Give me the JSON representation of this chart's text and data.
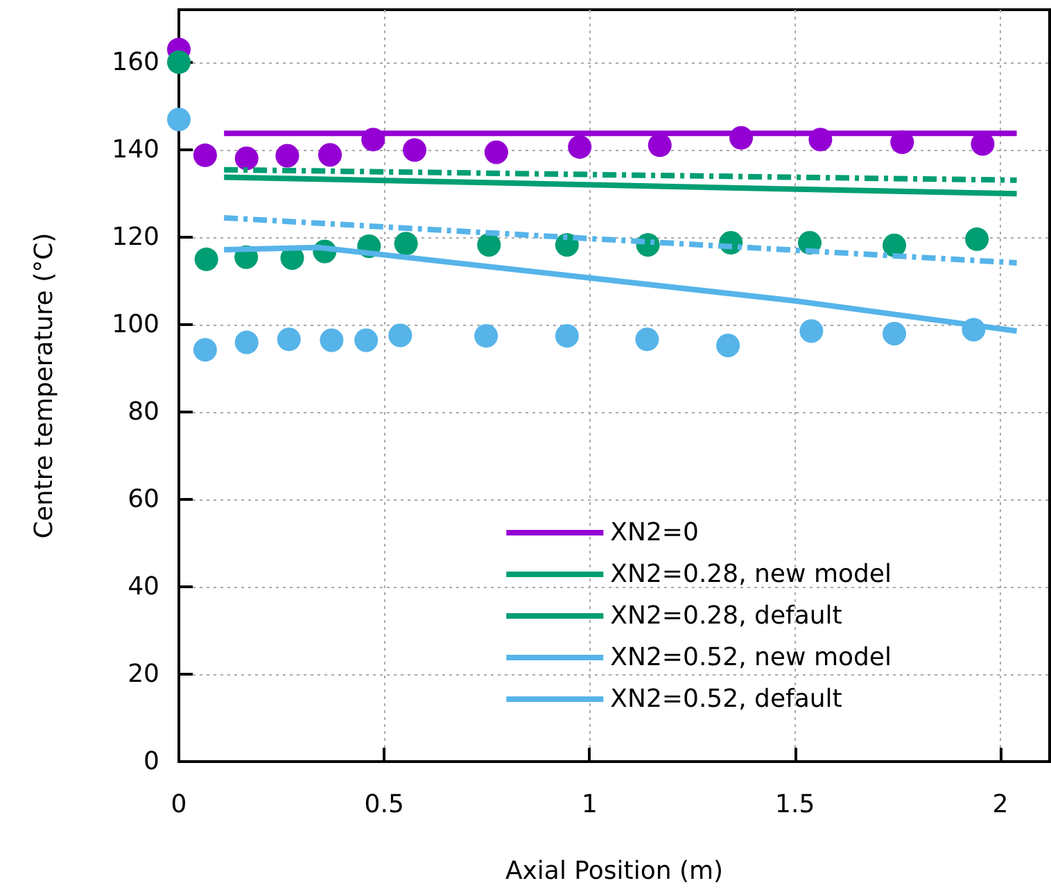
{
  "chart_data": {
    "type": "line",
    "xlabel": "Axial Position (m)",
    "ylabel": "Centre temperature (°C)",
    "xlim": [
      0,
      2.12
    ],
    "xticks": [
      0,
      0.5,
      1,
      1.5,
      2
    ],
    "ylim": [
      0,
      172
    ],
    "yticks": [
      0,
      20,
      40,
      60,
      80,
      100,
      120,
      140,
      160
    ],
    "grid": true,
    "legend": "bottom right",
    "marker": "none",
    "series": [
      {
        "name": "XN2=0",
        "color": "#9400d3",
        "x": [
          0.11,
          2.04
        ],
        "values": [
          143.7,
          143.7
        ],
        "line_style": "solid"
      },
      {
        "name": "XN2=0.28, new model",
        "color": "#009e73",
        "x": [
          0.11,
          2.04
        ],
        "values": [
          133.7,
          129.9
        ],
        "line_style": "solid"
      },
      {
        "name": "XN2=0.28, default",
        "color": "#009e73",
        "x": [
          0.11,
          2.04
        ],
        "values": [
          135.4,
          133.0
        ],
        "line_style": "dashed"
      },
      {
        "name": "XN2=0.52, new model",
        "color": "#56b4e9",
        "x": [
          0.11,
          0.339,
          1.5,
          2.04
        ],
        "values": [
          117.1,
          117.6,
          105.4,
          98.5
        ],
        "line_style": "solid"
      },
      {
        "name": "XN2=0.52, default",
        "color": "#56b4e9",
        "x": [
          0.11,
          2.04
        ],
        "values": [
          124.4,
          114.1
        ],
        "line_style": "dashed"
      },
      {
        "type": "scatter",
        "marker": "circle",
        "color": "#9400d3",
        "x": [
          0,
          0.064,
          0.165,
          0.264,
          0.368,
          0.473,
          0.574,
          0.773,
          0.976,
          1.171,
          1.369,
          1.562,
          1.761,
          1.957
        ],
        "values": [
          162.9,
          138.7,
          138.0,
          138.6,
          138.8,
          142.3,
          139.9,
          139.4,
          140.6,
          141.0,
          142.7,
          142.3,
          141.7,
          141.3
        ]
      },
      {
        "type": "scatter",
        "marker": "circle",
        "color": "#009e73",
        "x": [
          0,
          0.067,
          0.164,
          0.276,
          0.355,
          0.463,
          0.553,
          0.755,
          0.945,
          1.142,
          1.344,
          1.536,
          1.742,
          1.943
        ],
        "values": [
          160.0,
          114.9,
          115.4,
          115.2,
          116.7,
          117.9,
          118.5,
          118.2,
          118.2,
          118.2,
          118.7,
          118.7,
          118.1,
          119.5
        ]
      },
      {
        "type": "scatter",
        "marker": "circle",
        "color": "#56b4e9",
        "x": [
          0,
          0.064,
          0.165,
          0.268,
          0.372,
          0.456,
          0.539,
          0.748,
          0.945,
          1.14,
          1.337,
          1.54,
          1.742,
          1.935
        ],
        "values": [
          146.9,
          94.2,
          95.9,
          96.6,
          96.4,
          96.4,
          97.5,
          97.4,
          97.4,
          96.6,
          95.2,
          98.5,
          97.9,
          98.8
        ]
      }
    ]
  }
}
